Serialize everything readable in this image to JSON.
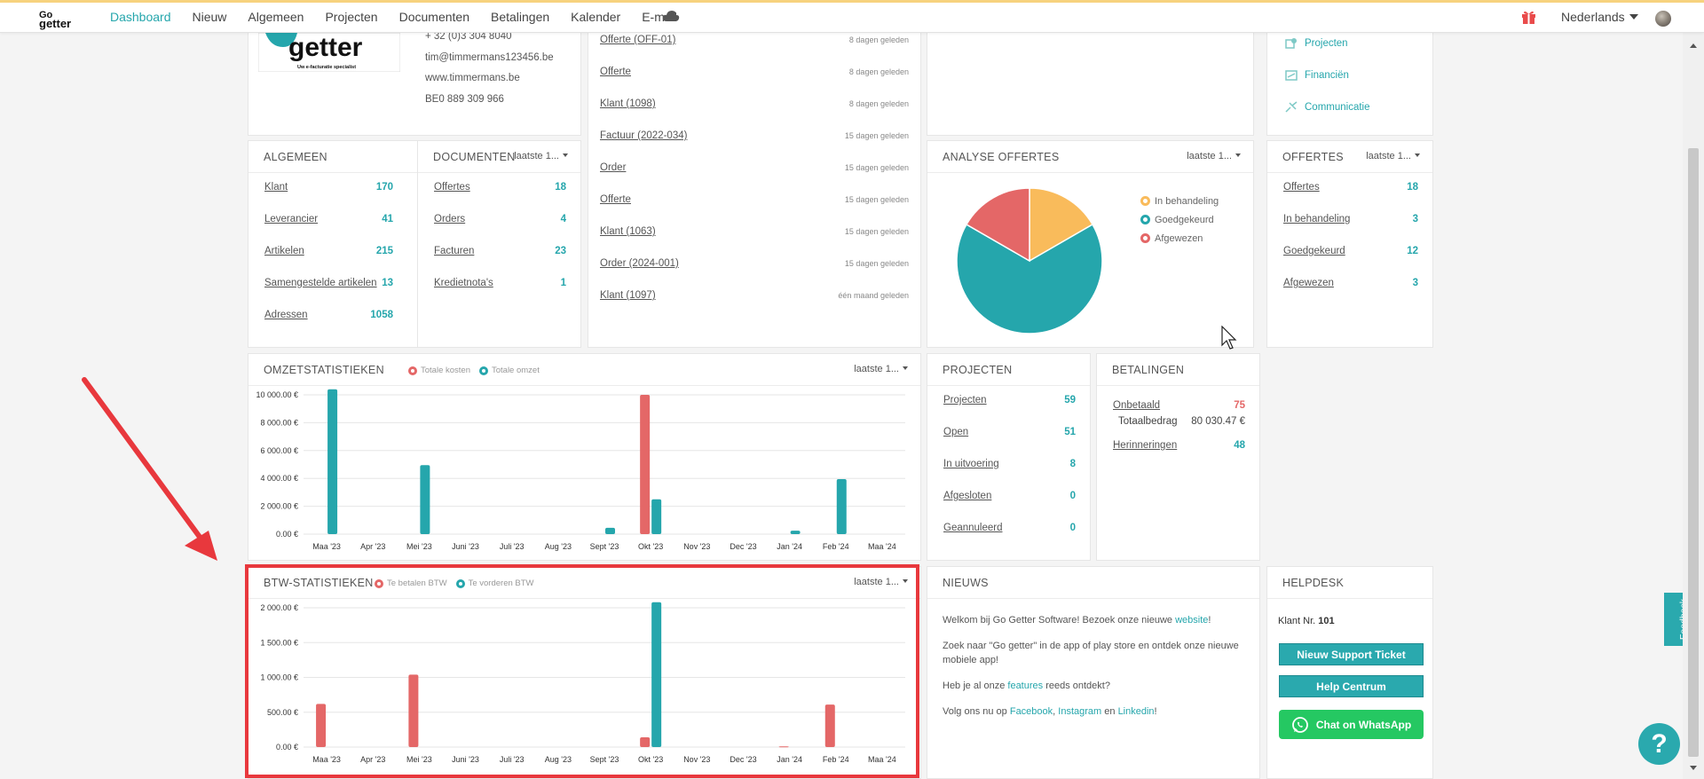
{
  "brand": {
    "logo_text_small": "Go",
    "logo_text": "getter",
    "accent": "#25a6ac"
  },
  "nav": {
    "items": [
      "Dashboard",
      "Nieuw",
      "Algemeen",
      "Projecten",
      "Documenten",
      "Betalingen",
      "Kalender",
      "E-mail"
    ],
    "active": "Dashboard",
    "language": "Nederlands"
  },
  "company": {
    "tagline": "Uw e-facturatie specialist",
    "phone": "+ 32 (0)3 304 8040",
    "email": "tim@timmermans123456.be",
    "website": "www.timmermans.be",
    "vat": "BE0 889 309 966"
  },
  "activity": [
    {
      "label": "Offerte (OFF-01)",
      "ago": "8 dagen geleden"
    },
    {
      "label": "Offerte",
      "ago": "8 dagen geleden"
    },
    {
      "label": "Klant (1098)",
      "ago": "8 dagen geleden"
    },
    {
      "label": "Factuur (2022-034)",
      "ago": "15 dagen geleden"
    },
    {
      "label": "Order",
      "ago": "15 dagen geleden"
    },
    {
      "label": "Offerte",
      "ago": "15 dagen geleden"
    },
    {
      "label": "Klant (1063)",
      "ago": "15 dagen geleden"
    },
    {
      "label": "Order (2024-001)",
      "ago": "15 dagen geleden"
    },
    {
      "label": "Klant (1097)",
      "ago": "één maand geleden"
    }
  ],
  "quicklinks": [
    "Projecten",
    "Financiën",
    "Communicatie"
  ],
  "period_label": "laatste 1...",
  "algemeen": {
    "title": "ALGEMEEN",
    "rows": [
      {
        "label": "Klant",
        "value": "170"
      },
      {
        "label": "Leverancier",
        "value": "41"
      },
      {
        "label": "Artikelen",
        "value": "215"
      },
      {
        "label": "Samengestelde artikelen",
        "value": "13"
      },
      {
        "label": "Adressen",
        "value": "1058"
      }
    ]
  },
  "documenten": {
    "title": "DOCUMENTEN",
    "rows": [
      {
        "label": "Offertes",
        "value": "18"
      },
      {
        "label": "Orders",
        "value": "4"
      },
      {
        "label": "Facturen",
        "value": "23"
      },
      {
        "label": "Kredietnota's",
        "value": "1"
      }
    ]
  },
  "analyse": {
    "title": "ANALYSE OFFERTES",
    "legend": [
      "In behandeling",
      "Goedgekeurd",
      "Afgewezen"
    ]
  },
  "offertes": {
    "title": "OFFERTES",
    "rows": [
      {
        "label": "Offertes",
        "value": "18"
      },
      {
        "label": "In behandeling",
        "value": "3"
      },
      {
        "label": "Goedgekeurd",
        "value": "12"
      },
      {
        "label": "Afgewezen",
        "value": "3"
      }
    ]
  },
  "omzet": {
    "title": "OMZETSTATISTIEKEN",
    "legend": [
      "Totale kosten",
      "Totale omzet"
    ]
  },
  "projecten": {
    "title": "PROJECTEN",
    "rows": [
      {
        "label": "Projecten",
        "value": "59"
      },
      {
        "label": "Open",
        "value": "51"
      },
      {
        "label": "In uitvoering",
        "value": "8"
      },
      {
        "label": "Afgesloten",
        "value": "0"
      },
      {
        "label": "Geannuleerd",
        "value": "0"
      }
    ]
  },
  "betalingen": {
    "title": "BETALINGEN",
    "unpaid_label": "Onbetaald",
    "unpaid_value": "75",
    "total_label": "Totaalbedrag",
    "total_value": "80 030.47 €",
    "reminders_label": "Herinneringen",
    "reminders_value": "48"
  },
  "btw": {
    "title": "BTW-STATISTIEKEN",
    "legend": [
      "Te betalen BTW",
      "Te vorderen BTW"
    ]
  },
  "nieuws": {
    "title": "NIEUWS",
    "p1_a": "Welkom bij Go Getter Software! Bezoek onze nieuwe ",
    "p1_link": "website",
    "p1_b": "!",
    "p2": "Zoek naar \"Go getter\" in de app of play store en ontdek onze nieuwe mobiele app!",
    "p3_a": "Heb je al onze ",
    "p3_link": "features",
    "p3_b": " reeds ontdekt?",
    "p4_a": "Volg ons nu op ",
    "facebook": "Facebook",
    "sep": ", ",
    "instagram": "Instagram",
    "en": " en ",
    "linkedin": "Linkedin",
    "p4_b": "!"
  },
  "helpdesk": {
    "title": "HELPDESK",
    "client_label": "Klant Nr.",
    "client_nr": "101",
    "ticket_btn": "Nieuw Support Ticket",
    "help_btn": "Help Centrum",
    "whatsapp_btn": "Chat on WhatsApp"
  },
  "feedback_label": "Feedback",
  "help_fab": "?",
  "colors": {
    "teal": "#25a6ac",
    "red": "#e46767",
    "orange": "#f9bb5b",
    "highlight": "#e8383d"
  },
  "chart_data": [
    {
      "type": "pie",
      "title": "ANALYSE OFFERTES",
      "categories": [
        "In behandeling",
        "Goedgekeurd",
        "Afgewezen"
      ],
      "values": [
        3,
        12,
        3
      ],
      "colors": [
        "#f9bb5b",
        "#25a6ac",
        "#e46767"
      ]
    },
    {
      "type": "bar",
      "title": "OMZETSTATISTIEKEN",
      "categories": [
        "Maa '23",
        "Apr '23",
        "Mei '23",
        "Juni '23",
        "Juli '23",
        "Aug '23",
        "Sept '23",
        "Okt '23",
        "Nov '23",
        "Dec '23",
        "Jan '24",
        "Feb '24",
        "Maa '24"
      ],
      "series": [
        {
          "name": "Totale kosten",
          "color": "#e46767",
          "values": [
            0,
            0,
            0,
            0,
            0,
            0,
            0,
            10000,
            0,
            0,
            0,
            0,
            0
          ]
        },
        {
          "name": "Totale omzet",
          "color": "#25a6ac",
          "values": [
            10400,
            0,
            4950,
            0,
            0,
            0,
            450,
            2500,
            0,
            0,
            250,
            3950,
            0
          ]
        }
      ],
      "ylim": [
        0,
        10000
      ],
      "yticks": [
        0,
        2000,
        4000,
        6000,
        8000,
        10000
      ],
      "ytick_labels": [
        "0.00 €",
        "2 000.00 €",
        "4 000.00 €",
        "6 000.00 €",
        "8 000.00 €",
        "10 000.00 €"
      ],
      "grid": true
    },
    {
      "type": "bar",
      "title": "BTW-STATISTIEKEN",
      "categories": [
        "Maa '23",
        "Apr '23",
        "Mei '23",
        "Juni '23",
        "Juli '23",
        "Aug '23",
        "Sept '23",
        "Okt '23",
        "Nov '23",
        "Dec '23",
        "Jan '24",
        "Feb '24",
        "Maa '24"
      ],
      "series": [
        {
          "name": "Te betalen BTW",
          "color": "#e46767",
          "values": [
            620,
            0,
            1040,
            0,
            0,
            0,
            0,
            140,
            0,
            0,
            10,
            610,
            0
          ]
        },
        {
          "name": "Te vorderen BTW",
          "color": "#25a6ac",
          "values": [
            0,
            0,
            0,
            0,
            0,
            0,
            0,
            2080,
            0,
            0,
            0,
            0,
            0
          ]
        }
      ],
      "ylim": [
        0,
        2000
      ],
      "yticks": [
        0,
        500,
        1000,
        1500,
        2000
      ],
      "ytick_labels": [
        "0.00 €",
        "500.00 €",
        "1 000.00 €",
        "1 500.00 €",
        "2 000.00 €"
      ],
      "grid": true
    }
  ]
}
